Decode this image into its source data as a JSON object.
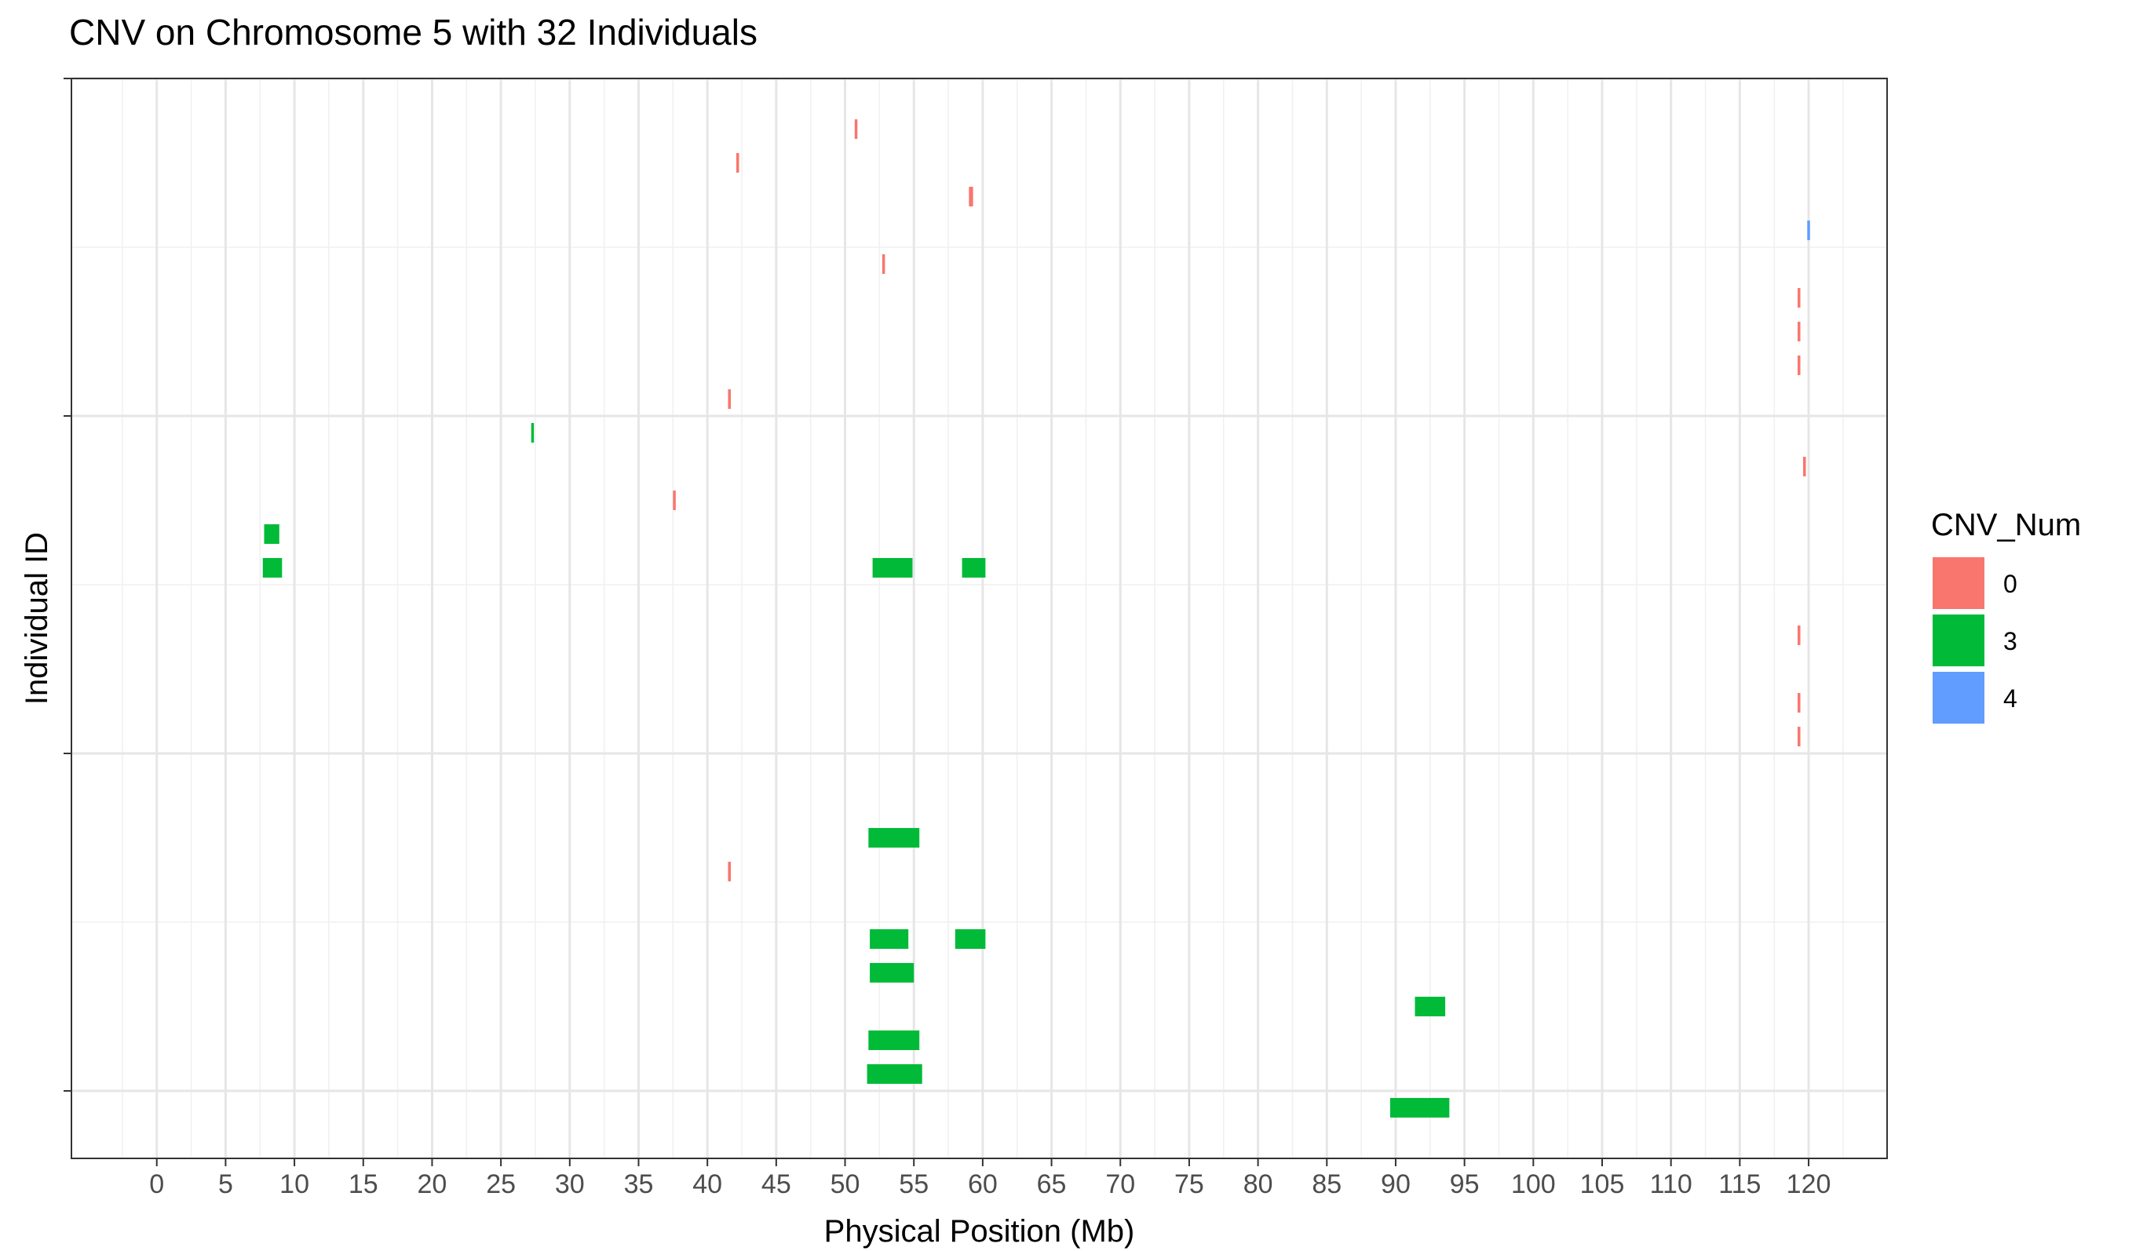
{
  "chart_data": {
    "type": "bar",
    "title": "CNV on Chromosome 5 with 32 Individuals",
    "xlabel": "Physical Position (Mb)",
    "ylabel": "Individual ID",
    "xlim": [
      -6.2,
      125.7
    ],
    "ylim": [
      0.5,
      32.5
    ],
    "x_ticks": [
      0,
      5,
      10,
      15,
      20,
      25,
      30,
      35,
      40,
      45,
      50,
      55,
      60,
      65,
      70,
      75,
      80,
      85,
      90,
      95,
      100,
      105,
      110,
      115,
      120
    ],
    "y_ticks": [
      2.5,
      12.5,
      22.5,
      32.5
    ],
    "y_tick_labels": [
      "",
      "",
      "",
      ""
    ],
    "grid": true,
    "legend": {
      "title": "CNV_Num",
      "position": "right",
      "entries": [
        {
          "label": "0",
          "color": "#F8766D"
        },
        {
          "label": "3",
          "color": "#00BA38"
        },
        {
          "label": "4",
          "color": "#619CFF"
        }
      ]
    },
    "segments": [
      {
        "row": 31,
        "start": 50.7,
        "end": 50.9,
        "cnv": "0"
      },
      {
        "row": 30,
        "start": 42.1,
        "end": 42.3,
        "cnv": "0"
      },
      {
        "row": 29,
        "start": 59.0,
        "end": 59.3,
        "cnv": "0"
      },
      {
        "row": 28,
        "start": 119.9,
        "end": 120.1,
        "cnv": "4"
      },
      {
        "row": 27,
        "start": 52.7,
        "end": 52.9,
        "cnv": "0"
      },
      {
        "row": 26,
        "start": 119.2,
        "end": 119.4,
        "cnv": "0"
      },
      {
        "row": 25,
        "start": 119.2,
        "end": 119.4,
        "cnv": "0"
      },
      {
        "row": 24,
        "start": 119.2,
        "end": 119.4,
        "cnv": "0"
      },
      {
        "row": 23,
        "start": 41.5,
        "end": 41.7,
        "cnv": "0"
      },
      {
        "row": 22,
        "start": 27.2,
        "end": 27.4,
        "cnv": "3"
      },
      {
        "row": 21,
        "start": 119.6,
        "end": 119.8,
        "cnv": "0"
      },
      {
        "row": 20,
        "start": 37.5,
        "end": 37.7,
        "cnv": "0"
      },
      {
        "row": 19,
        "start": 7.8,
        "end": 8.9,
        "cnv": "3"
      },
      {
        "row": 18,
        "start": 7.7,
        "end": 9.1,
        "cnv": "3"
      },
      {
        "row": 18,
        "start": 52.0,
        "end": 54.9,
        "cnv": "3"
      },
      {
        "row": 18,
        "start": 58.5,
        "end": 60.2,
        "cnv": "3"
      },
      {
        "row": 16,
        "start": 119.2,
        "end": 119.4,
        "cnv": "0"
      },
      {
        "row": 14,
        "start": 119.2,
        "end": 119.4,
        "cnv": "0"
      },
      {
        "row": 13,
        "start": 119.2,
        "end": 119.4,
        "cnv": "0"
      },
      {
        "row": 10,
        "start": 51.7,
        "end": 55.4,
        "cnv": "3"
      },
      {
        "row": 9,
        "start": 41.5,
        "end": 41.7,
        "cnv": "0"
      },
      {
        "row": 7,
        "start": 51.8,
        "end": 54.6,
        "cnv": "3"
      },
      {
        "row": 7,
        "start": 58.0,
        "end": 60.2,
        "cnv": "3"
      },
      {
        "row": 6,
        "start": 51.8,
        "end": 55.0,
        "cnv": "3"
      },
      {
        "row": 5,
        "start": 91.4,
        "end": 93.6,
        "cnv": "3"
      },
      {
        "row": 4,
        "start": 51.7,
        "end": 55.4,
        "cnv": "3"
      },
      {
        "row": 3,
        "start": 51.6,
        "end": 55.6,
        "cnv": "3"
      },
      {
        "row": 2,
        "start": 89.6,
        "end": 93.9,
        "cnv": "3"
      }
    ]
  }
}
